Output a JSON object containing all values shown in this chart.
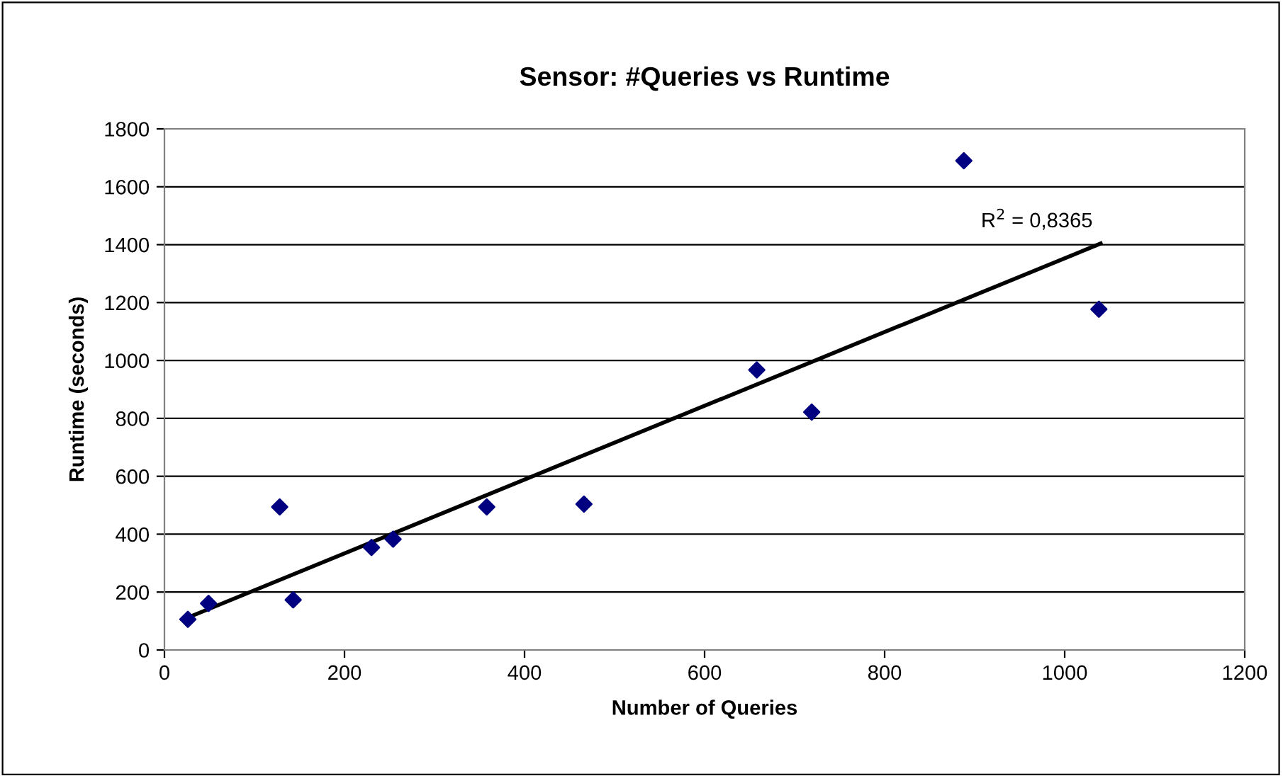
{
  "chart_data": {
    "type": "scatter",
    "title": "Sensor: #Queries vs Runtime",
    "xlabel": "Number of Queries",
    "ylabel": "Runtime (seconds)",
    "xlim": [
      0,
      1200
    ],
    "xticks": [
      0,
      200,
      400,
      600,
      800,
      1000,
      1200
    ],
    "ylim": [
      0,
      1800
    ],
    "yticks": [
      0,
      200,
      400,
      600,
      800,
      1000,
      1200,
      1400,
      1600,
      1800
    ],
    "grid": "y",
    "legend": false,
    "series": [
      {
        "marker": "diamond",
        "color": "#000080",
        "x": [
          26,
          49,
          128,
          143,
          230,
          254,
          358,
          466,
          658,
          719,
          888,
          1038
        ],
        "values": [
          106,
          161,
          494,
          173,
          354,
          383,
          494,
          504,
          967,
          822,
          1690,
          1177
        ]
      },
      {
        "type": "line",
        "marker": "none",
        "color": "#000000",
        "line_style": "solid",
        "x": [
          26,
          1040
        ],
        "values": [
          112,
          1404
        ]
      }
    ],
    "annotations": [
      {
        "text": "R$^{2}$ = 0,8365",
        "x": 1040,
        "y": 1404
      }
    ]
  }
}
